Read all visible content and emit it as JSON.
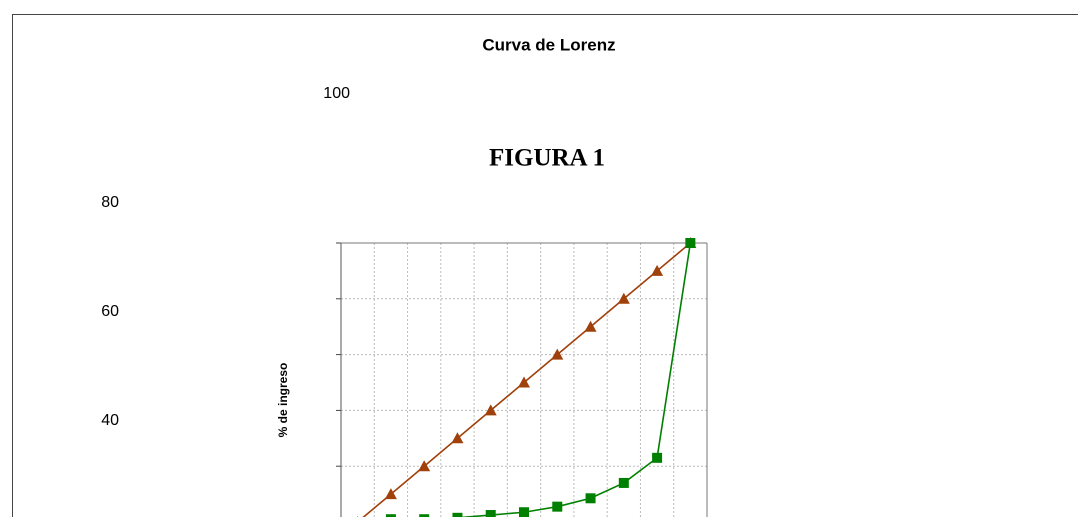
{
  "chart_data": {
    "type": "line",
    "title": "Curva de Lorenz",
    "subtitle": "FIGURA 1",
    "y_label": "% de ingreso",
    "categories": [
      null,
      null,
      null,
      null,
      null,
      null,
      null,
      null,
      null,
      null,
      null
    ],
    "series": [
      {
        "color": "#a0400a",
        "marker": "triangle",
        "values": [
          0,
          10,
          20,
          30,
          40,
          50,
          60,
          70,
          80,
          90,
          100
        ]
      },
      {
        "color": "#008000",
        "marker": "square",
        "values": [
          0,
          1,
          1,
          1.5,
          2.5,
          3.5,
          5.5,
          8.5,
          14,
          23,
          100
        ]
      }
    ],
    "ylim": [
      0,
      100
    ],
    "yticks": [
      40,
      60,
      80,
      100
    ],
    "grid": true
  }
}
